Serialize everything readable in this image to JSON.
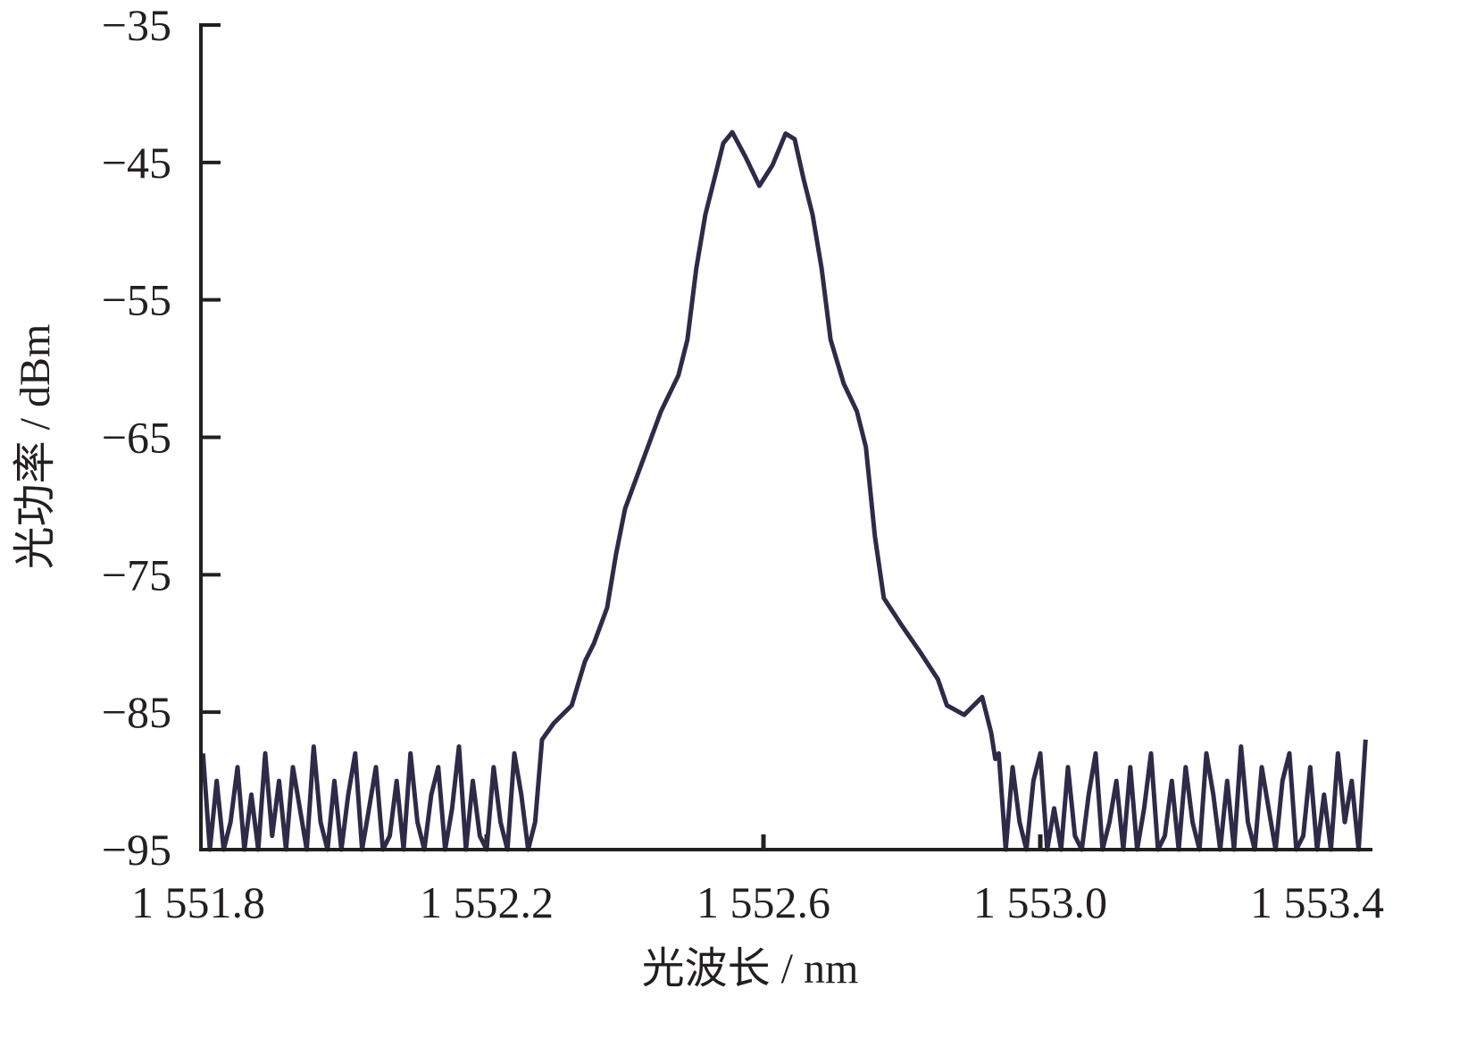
{
  "chart_data": {
    "type": "line",
    "title": "",
    "xlabel": "光波长 / nm",
    "ylabel": "光功率 / dBm",
    "xlim": [
      1551.79,
      1553.48
    ],
    "ylim": [
      -95,
      -35
    ],
    "x_ticks": [
      1551.8,
      1552.2,
      1552.6,
      1553.0,
      1553.4
    ],
    "x_tick_labels": [
      "1 551.8",
      "1 552.2",
      "1 552.6",
      "1 553.0",
      "1 553.4"
    ],
    "y_ticks": [
      -35,
      -45,
      -55,
      -65,
      -75,
      -85,
      -95
    ],
    "y_tick_labels": [
      "−35",
      "−45",
      "−55",
      "−65",
      "−75",
      "−85",
      "−95"
    ],
    "grid": false,
    "line_color": "#2f2a48",
    "series": [
      {
        "x": [
          1551.79,
          1551.8,
          1551.81,
          1551.82,
          1551.83,
          1551.84,
          1551.85,
          1551.86,
          1551.87,
          1551.88,
          1551.89,
          1551.9,
          1551.91,
          1551.92,
          1551.93,
          1551.94,
          1551.95,
          1551.96,
          1551.97,
          1551.98,
          1551.99,
          1552.0,
          1552.01,
          1552.02,
          1552.03,
          1552.04,
          1552.05,
          1552.06,
          1552.07,
          1552.08,
          1552.09,
          1552.1,
          1552.11,
          1552.12,
          1552.13,
          1552.14,
          1552.15,
          1552.16,
          1552.17,
          1552.18,
          1552.19,
          1552.2,
          1552.21,
          1552.22,
          1552.23,
          1552.24,
          1552.25,
          1552.26,
          1552.27,
          1552.28,
          1552.297,
          1552.323,
          1552.342,
          1552.355,
          1552.374,
          1552.387,
          1552.4,
          1552.419,
          1552.452,
          1552.477,
          1552.49,
          1552.503,
          1552.516,
          1552.529,
          1552.542,
          1552.555,
          1552.574,
          1552.594,
          1552.613,
          1552.632,
          1552.645,
          1552.658,
          1552.671,
          1552.684,
          1552.697,
          1552.716,
          1552.735,
          1552.748,
          1552.761,
          1552.774,
          1552.8,
          1552.826,
          1552.852,
          1552.865,
          1552.89,
          1552.916,
          1552.929,
          1552.935,
          1552.94,
          1552.95,
          1552.96,
          1552.97,
          1552.98,
          1552.99,
          1553.0,
          1553.01,
          1553.02,
          1553.03,
          1553.04,
          1553.05,
          1553.06,
          1553.07,
          1553.08,
          1553.09,
          1553.1,
          1553.11,
          1553.12,
          1553.13,
          1553.14,
          1553.15,
          1553.16,
          1553.17,
          1553.18,
          1553.19,
          1553.2,
          1553.21,
          1553.22,
          1553.23,
          1553.24,
          1553.25,
          1553.26,
          1553.27,
          1553.28,
          1553.29,
          1553.3,
          1553.31,
          1553.32,
          1553.33,
          1553.34,
          1553.35,
          1553.36,
          1553.37,
          1553.38,
          1553.39,
          1553.4,
          1553.41,
          1553.42,
          1553.43,
          1553.44,
          1553.45,
          1553.46,
          1553.47
        ],
        "y": [
          -88,
          -95,
          -90,
          -95,
          -93,
          -89,
          -95,
          -91,
          -95,
          -88,
          -94,
          -90,
          -95,
          -89,
          -92,
          -95,
          -87.5,
          -93,
          -95,
          -90,
          -95,
          -91,
          -88,
          -95,
          -92,
          -89,
          -95,
          -94,
          -90,
          -95,
          -88,
          -93,
          -95,
          -91,
          -89,
          -95,
          -92,
          -87.5,
          -95,
          -90,
          -94,
          -95,
          -89,
          -93,
          -95,
          -88,
          -91,
          -95,
          -93,
          -87,
          -85.8,
          -84.5,
          -81.3,
          -80.0,
          -77.4,
          -73.5,
          -70.2,
          -67.6,
          -63.1,
          -60.5,
          -57.9,
          -52.7,
          -48.8,
          -46.2,
          -43.6,
          -42.8,
          -44.6,
          -46.7,
          -45.2,
          -42.9,
          -43.3,
          -46.2,
          -48.8,
          -52.7,
          -57.9,
          -61.1,
          -63.1,
          -65.7,
          -72.2,
          -76.7,
          -78.7,
          -80.6,
          -82.6,
          -84.5,
          -85.2,
          -83.9,
          -86.5,
          -88.4,
          -88,
          -95,
          -89,
          -93,
          -95,
          -90,
          -88,
          -95,
          -92,
          -95,
          -89,
          -94,
          -95,
          -91,
          -88,
          -95,
          -93,
          -90,
          -95,
          -89,
          -95,
          -92,
          -88,
          -95,
          -94,
          -90,
          -95,
          -89,
          -93,
          -95,
          -88,
          -91,
          -95,
          -90,
          -95,
          -87.5,
          -93,
          -95,
          -89,
          -92,
          -95,
          -90,
          -88,
          -95,
          -94,
          -89,
          -95,
          -91,
          -95,
          -88,
          -93,
          -90,
          -95,
          -87
        ]
      }
    ]
  }
}
